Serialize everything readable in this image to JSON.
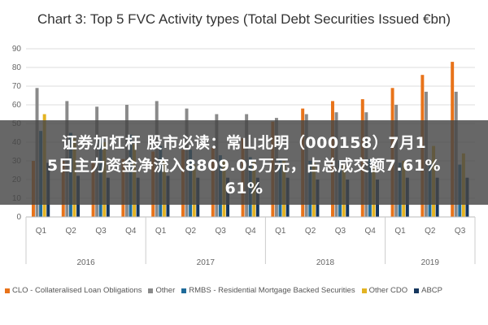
{
  "chart_data": {
    "type": "bar",
    "title": "Chart 3: Top 5 FVC Activity types (Total Debt Securities Issued €bn)",
    "categories": [
      "Q1",
      "Q2",
      "Q3",
      "Q4",
      "Q1",
      "Q2",
      "Q3",
      "Q4",
      "Q1",
      "Q2",
      "Q3",
      "Q4",
      "Q1",
      "Q2",
      "Q3"
    ],
    "years": [
      {
        "label": "2016",
        "span": 4
      },
      {
        "label": "2017",
        "span": 4
      },
      {
        "label": "2018",
        "span": 4
      },
      {
        "label": "2019",
        "span": 3
      }
    ],
    "ylim": [
      0,
      90
    ],
    "yticks": [
      0,
      10,
      20,
      30,
      40,
      50,
      60,
      70,
      80,
      90
    ],
    "series": [
      {
        "name": "CLO - Collateralised Loan Obligations",
        "color": "#e8731a",
        "values": [
          30,
          30,
          30,
          31,
          35,
          36,
          37,
          42,
          51,
          58,
          62,
          63,
          69,
          76,
          83
        ]
      },
      {
        "name": "Other",
        "color": "#8a8a8a",
        "values": [
          69,
          62,
          59,
          60,
          62,
          58,
          55,
          55,
          53,
          55,
          56,
          56,
          60,
          67,
          67
        ]
      },
      {
        "name": "RMBS - Residential Mortgage Backed Securities",
        "color": "#1f6b9a",
        "values": [
          46,
          45,
          42,
          44,
          38,
          36,
          33,
          32,
          31,
          30,
          30,
          31,
          29,
          28,
          28
        ]
      },
      {
        "name": "Other CDO",
        "color": "#e3b322",
        "values": [
          55,
          42,
          40,
          39,
          30,
          28,
          30,
          30,
          30,
          29,
          28,
          28,
          30,
          38,
          34
        ]
      },
      {
        "name": "ABCP",
        "color": "#16375e",
        "values": [
          29,
          22,
          21,
          21,
          22,
          21,
          21,
          21,
          21,
          20,
          20,
          20,
          21,
          21,
          21
        ]
      }
    ],
    "grid": true,
    "legend_position": "bottom"
  },
  "overlay": {
    "line1": "证券加杠杆 股市必读：常山北明（000158）7月1",
    "line2": "5日主力资金净流入8809.05万元，占总成交额7.61%",
    "line3": "61%"
  }
}
